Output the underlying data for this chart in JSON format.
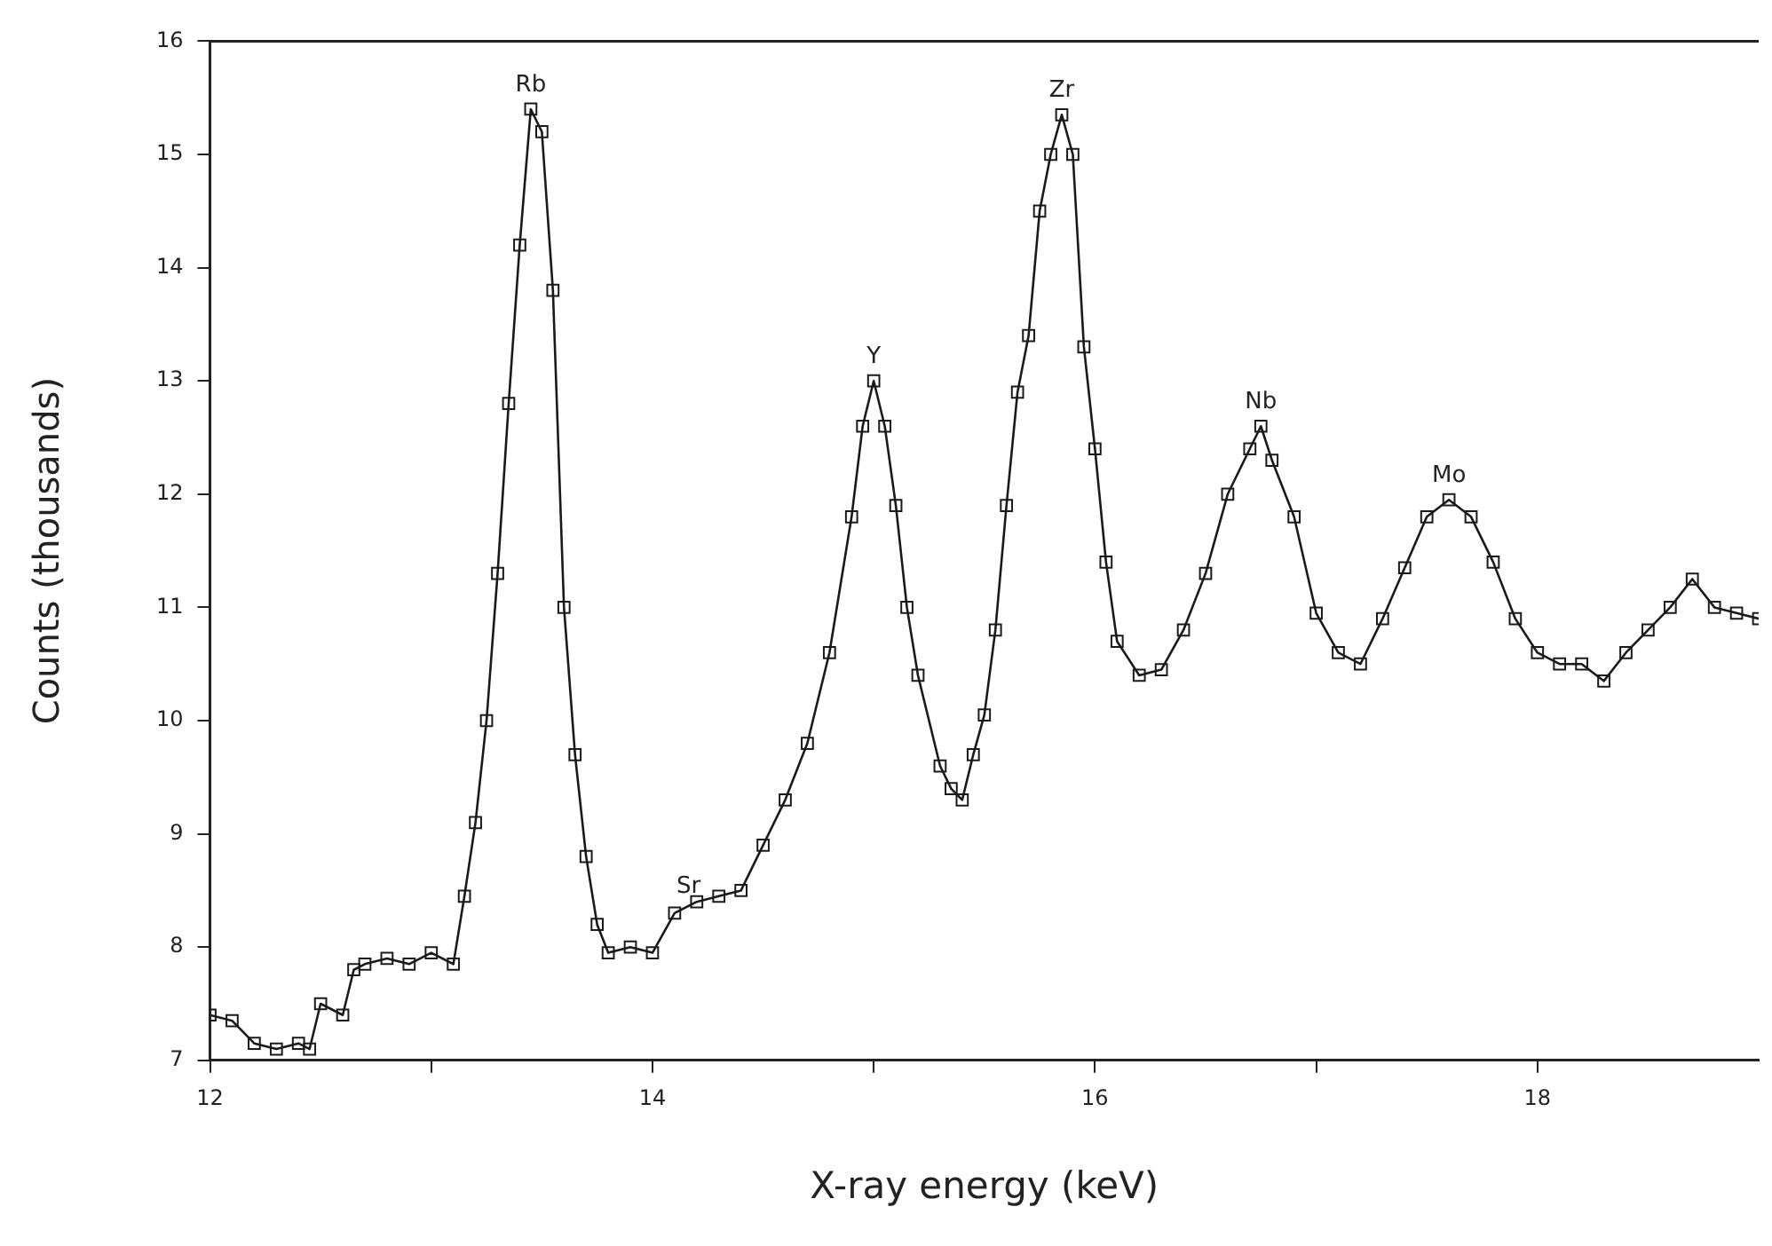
{
  "chart_data": {
    "type": "line",
    "xlabel": "X-ray energy (keV)",
    "ylabel": "Counts (thousands)",
    "marker": "square",
    "grid": false,
    "xlim": [
      12,
      19
    ],
    "xticks": [
      12,
      {
        "value": 13,
        "label": null
      },
      14,
      {
        "value": 15,
        "label": null
      },
      16,
      {
        "value": 17,
        "label": null
      },
      18
    ],
    "ylim": [
      7,
      16
    ],
    "yticks": [
      7,
      8,
      9,
      10,
      11,
      12,
      13,
      14,
      15,
      16
    ],
    "series": [
      {
        "color": "#1a1a1a",
        "x": [
          12.0,
          12.1,
          12.2,
          12.3,
          12.4,
          12.45,
          12.5,
          12.6,
          12.65,
          12.7,
          12.8,
          12.9,
          13.0,
          13.1,
          13.15,
          13.2,
          13.25,
          13.3,
          13.35,
          13.4,
          13.45,
          13.5,
          13.55,
          13.6,
          13.65,
          13.7,
          13.75,
          13.8,
          13.9,
          14.0,
          14.1,
          14.2,
          14.3,
          14.4,
          14.5,
          14.6,
          14.7,
          14.8,
          14.9,
          14.95,
          15.0,
          15.05,
          15.1,
          15.15,
          15.2,
          15.3,
          15.35,
          15.4,
          15.45,
          15.5,
          15.55,
          15.6,
          15.65,
          15.7,
          15.75,
          15.8,
          15.85,
          15.9,
          15.95,
          16.0,
          16.05,
          16.1,
          16.2,
          16.3,
          16.4,
          16.5,
          16.6,
          16.7,
          16.75,
          16.8,
          16.9,
          17.0,
          17.1,
          17.2,
          17.3,
          17.4,
          17.5,
          17.6,
          17.7,
          17.8,
          17.9,
          18.0,
          18.1,
          18.2,
          18.3,
          18.4,
          18.5,
          18.6,
          18.7,
          18.8,
          18.9,
          19.0
        ],
        "values": [
          7.4,
          7.35,
          7.15,
          7.1,
          7.15,
          7.1,
          7.5,
          7.4,
          7.8,
          7.85,
          7.9,
          7.85,
          7.95,
          7.85,
          8.45,
          9.1,
          10.0,
          11.3,
          12.8,
          14.2,
          15.4,
          15.2,
          13.8,
          11.0,
          9.7,
          8.8,
          8.2,
          7.95,
          8.0,
          7.95,
          8.3,
          8.4,
          8.45,
          8.5,
          8.9,
          9.3,
          9.8,
          10.6,
          11.8,
          12.6,
          13.0,
          12.6,
          11.9,
          11.0,
          10.4,
          9.6,
          9.4,
          9.3,
          9.7,
          10.05,
          10.8,
          11.9,
          12.9,
          13.4,
          14.5,
          15.0,
          15.35,
          15.0,
          13.3,
          12.4,
          11.4,
          10.7,
          10.4,
          10.45,
          10.8,
          11.3,
          12.0,
          12.4,
          12.6,
          12.3,
          11.8,
          10.95,
          10.6,
          10.5,
          10.9,
          11.35,
          11.8,
          11.95,
          11.8,
          11.4,
          10.9,
          10.6,
          10.5,
          10.5,
          10.35,
          10.6,
          10.8,
          11.0,
          11.25,
          11.0,
          10.95,
          10.9
        ]
      }
    ],
    "annotations": [
      {
        "text": "Rb",
        "x": 13.45,
        "y": 15.4
      },
      {
        "text": "Sr",
        "x": 14.25,
        "y": 8.4
      },
      {
        "text": "Y",
        "x": 15.0,
        "y": 13.0
      },
      {
        "text": "Zr",
        "x": 15.85,
        "y": 15.35
      },
      {
        "text": "Nb",
        "x": 16.75,
        "y": 12.6
      },
      {
        "text": "Mo",
        "x": 17.6,
        "y": 11.95
      }
    ]
  }
}
